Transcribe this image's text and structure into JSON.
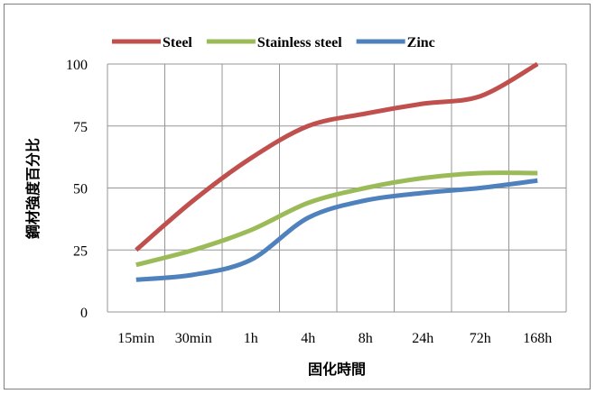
{
  "chart_data": {
    "type": "line",
    "title": "",
    "xlabel": "固化時間",
    "ylabel": "鋼材強度百分比",
    "categories": [
      "15min",
      "30min",
      "1h",
      "4h",
      "8h",
      "24h",
      "72h",
      "168h"
    ],
    "ylim": [
      0,
      100
    ],
    "yticks": [
      0,
      25,
      50,
      75,
      100
    ],
    "grid": true,
    "legend_position": "top",
    "series": [
      {
        "name": "Steel",
        "color": "#c0504d",
        "values": [
          25,
          45,
          62,
          75,
          80,
          84,
          87,
          100
        ]
      },
      {
        "name": "Stainless steel",
        "color": "#9bbb59",
        "values": [
          19,
          25,
          33,
          44,
          50,
          54,
          56,
          56
        ]
      },
      {
        "name": "Zinc",
        "color": "#4f81bd",
        "values": [
          13,
          15,
          21,
          38,
          45,
          48,
          50,
          53
        ]
      }
    ]
  }
}
